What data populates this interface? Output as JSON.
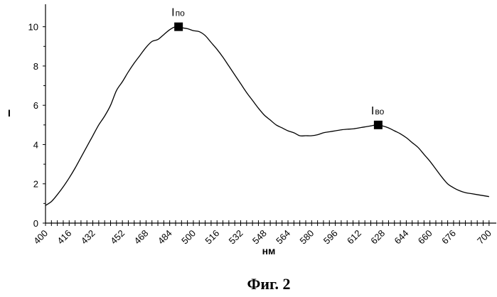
{
  "chart_data": {
    "type": "line",
    "xlabel": "нм",
    "ylabel": "I",
    "caption": "Фиг. 2",
    "xlim": [
      400,
      702
    ],
    "ylim": [
      0,
      11
    ],
    "x_ticks": [
      400,
      416,
      432,
      452,
      468,
      484,
      500,
      516,
      532,
      548,
      564,
      580,
      596,
      612,
      628,
      644,
      660,
      676,
      700
    ],
    "y_ticks": [
      0,
      2,
      4,
      6,
      8,
      10
    ],
    "series": [
      {
        "x": [
          400,
          404,
          408,
          412,
          416,
          420,
          424,
          428,
          432,
          436,
          440,
          444,
          448,
          452,
          456,
          460,
          464,
          468,
          472,
          476,
          480,
          484,
          488,
          492,
          496,
          500,
          504,
          508,
          512,
          516,
          520,
          524,
          528,
          532,
          536,
          540,
          544,
          548,
          552,
          556,
          560,
          564,
          568,
          572,
          576,
          580,
          584,
          588,
          592,
          596,
          600,
          604,
          608,
          612,
          616,
          620,
          624,
          628,
          632,
          636,
          640,
          644,
          648,
          652,
          656,
          660,
          664,
          668,
          672,
          676,
          680,
          684,
          688,
          692,
          696,
          700
        ],
        "y": [
          0.9,
          1.1,
          1.45,
          1.85,
          2.3,
          2.8,
          3.35,
          3.9,
          4.45,
          5.0,
          5.45,
          6.0,
          6.75,
          7.2,
          7.7,
          8.15,
          8.55,
          8.95,
          9.25,
          9.35,
          9.6,
          9.85,
          10.0,
          9.95,
          9.9,
          9.8,
          9.75,
          9.55,
          9.2,
          8.85,
          8.45,
          8.0,
          7.55,
          7.1,
          6.65,
          6.25,
          5.85,
          5.5,
          5.25,
          5.0,
          4.85,
          4.7,
          4.6,
          4.45,
          4.45,
          4.45,
          4.5,
          4.6,
          4.65,
          4.7,
          4.75,
          4.78,
          4.8,
          4.85,
          4.9,
          4.95,
          5.0,
          4.95,
          4.85,
          4.7,
          4.55,
          4.35,
          4.1,
          3.85,
          3.5,
          3.15,
          2.75,
          2.35,
          2.0,
          1.8,
          1.65,
          1.55,
          1.5,
          1.45,
          1.4,
          1.35
        ]
      }
    ],
    "markers": [
      {
        "x": 490,
        "y": 10.0,
        "label": "I",
        "sub": "по"
      },
      {
        "x": 625,
        "y": 5.0,
        "label": "I",
        "sub": "во"
      }
    ],
    "grid": false
  }
}
